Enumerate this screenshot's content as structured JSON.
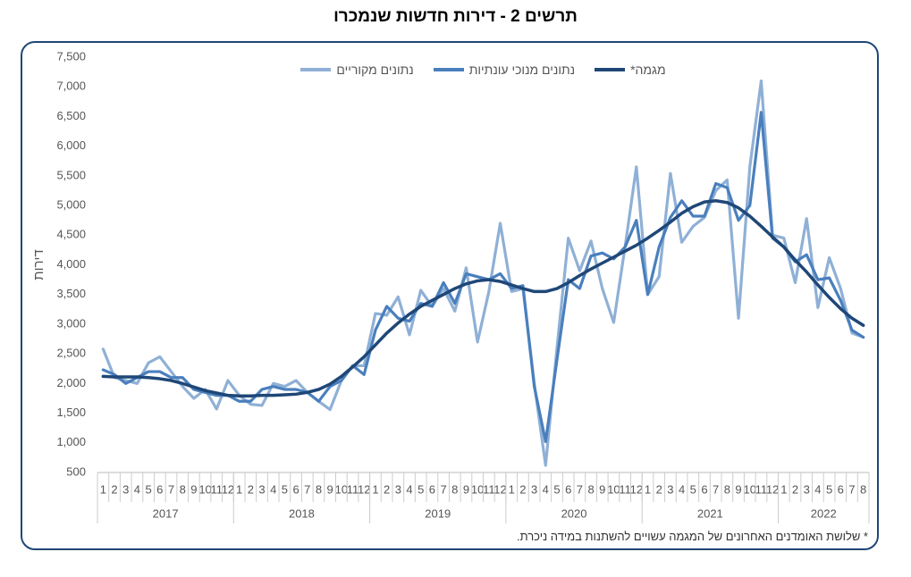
{
  "chart_data": {
    "type": "line",
    "title": "תרשים 2 - דירות חדשות שנמכרו",
    "y_label": "דירות",
    "note": "* שלושת האומדנים האחרונים של המגמה עשויים להשתנות במידה ניכרת.",
    "legend": "top",
    "categories": [
      "1",
      "2",
      "3",
      "4",
      "5",
      "6",
      "7",
      "8",
      "9",
      "10",
      "11",
      "12",
      "1",
      "2",
      "3",
      "4",
      "5",
      "6",
      "7",
      "8",
      "9",
      "10",
      "11",
      "12",
      "1",
      "2",
      "3",
      "4",
      "5",
      "6",
      "7",
      "8",
      "9",
      "10",
      "11",
      "12",
      "1",
      "2",
      "3",
      "4",
      "5",
      "6",
      "7",
      "8",
      "9",
      "10",
      "11",
      "12",
      "1",
      "2",
      "3",
      "4",
      "5",
      "6",
      "7",
      "8",
      "9",
      "10",
      "11",
      "12",
      "1",
      "2",
      "3",
      "4",
      "5",
      "6",
      "7",
      "8"
    ],
    "years": [
      "2017",
      "2018",
      "2019",
      "2020",
      "2021",
      "2022"
    ],
    "ylim": [
      500,
      7500
    ],
    "yticks": [
      500,
      {
        "value": 1000,
        "label": "1,000"
      },
      {
        "value": 1500,
        "label": "1,500"
      },
      {
        "value": 2000,
        "label": "2,000"
      },
      {
        "value": 2500,
        "label": "2,500"
      },
      {
        "value": 3000,
        "label": "3,000"
      },
      {
        "value": 3500,
        "label": "3,500"
      },
      {
        "value": 4000,
        "label": "4,000"
      },
      {
        "value": 4500,
        "label": "4,500"
      },
      {
        "value": 5000,
        "label": "5,000"
      },
      {
        "value": 5500,
        "label": "5,500"
      },
      {
        "value": 6000,
        "label": "6,000"
      },
      {
        "value": 6500,
        "label": "6,500"
      },
      {
        "value": 7000,
        "label": "7,000"
      },
      {
        "value": 7500,
        "label": "7,500"
      }
    ],
    "series": [
      {
        "name": "נתונים מקוריים",
        "color": "#8fb0d6",
        "values": [
          2580,
          2100,
          2050,
          2000,
          2350,
          2450,
          2200,
          1950,
          1750,
          1900,
          1570,
          2050,
          1800,
          1650,
          1630,
          2000,
          1950,
          2050,
          1850,
          1700,
          1560,
          2050,
          2300,
          2300,
          3180,
          3150,
          3460,
          2820,
          3570,
          3300,
          3600,
          3220,
          3950,
          2700,
          3550,
          4700,
          3550,
          3600,
          2000,
          620,
          2600,
          4450,
          3900,
          4400,
          3600,
          3030,
          4300,
          5650,
          3500,
          3800,
          5540,
          4380,
          4650,
          4800,
          5250,
          5430,
          3100,
          5650,
          7100,
          4500,
          4450,
          3700,
          4780,
          3280,
          4120,
          3600,
          2850,
          2780
        ]
      },
      {
        "name": "נתונים מנוכי עונתיות",
        "color": "#4a7fbd",
        "values": [
          2230,
          2150,
          2000,
          2100,
          2200,
          2200,
          2100,
          2100,
          1900,
          1850,
          1800,
          1800,
          1700,
          1700,
          1900,
          1950,
          1900,
          1900,
          1850,
          1700,
          1950,
          2050,
          2300,
          2150,
          2900,
          3300,
          3100,
          3050,
          3350,
          3300,
          3700,
          3350,
          3850,
          3800,
          3750,
          3850,
          3600,
          3650,
          1950,
          1020,
          2400,
          3750,
          3600,
          4150,
          4200,
          4100,
          4300,
          4750,
          3500,
          4300,
          4800,
          5080,
          4820,
          4820,
          5370,
          5300,
          4750,
          5000,
          6570,
          4450,
          4300,
          4050,
          4170,
          3750,
          3780,
          3400,
          2900,
          2780
        ]
      },
      {
        "name": "מגמה*",
        "color": "#1f4777",
        "values": [
          2120,
          2110,
          2110,
          2110,
          2100,
          2080,
          2050,
          2000,
          1940,
          1880,
          1840,
          1800,
          1790,
          1790,
          1800,
          1800,
          1810,
          1820,
          1850,
          1900,
          1990,
          2120,
          2280,
          2450,
          2650,
          2850,
          3020,
          3170,
          3300,
          3400,
          3500,
          3600,
          3680,
          3730,
          3750,
          3720,
          3660,
          3600,
          3550,
          3550,
          3600,
          3700,
          3820,
          3930,
          4030,
          4130,
          4230,
          4330,
          4450,
          4580,
          4720,
          4870,
          4980,
          5060,
          5080,
          5050,
          4960,
          4820,
          4650,
          4470,
          4300,
          4080,
          3880,
          3660,
          3450,
          3260,
          3100,
          2980
        ]
      }
    ]
  }
}
